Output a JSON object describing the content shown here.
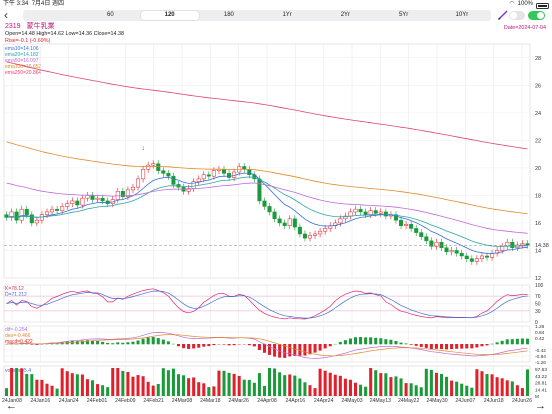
{
  "status": {
    "time": "下午 3:34",
    "date": "7月4日 週四",
    "battery": "100%"
  },
  "tabs": [
    "",
    "60",
    "120",
    "180",
    "1Yr",
    "2Yr",
    "5Yr",
    "10Yr"
  ],
  "active_tab": 2,
  "stock": {
    "code": "2319",
    "name": "蒙牛乳業",
    "ohlc": "Open=14.48  High=14.62  Low=14.36  Close=14.38",
    "rise": "Rise=-0.1  (-0.69%)",
    "date": "Date=2024-07-04"
  },
  "ma_legend": [
    {
      "label": "ema10=14.106",
      "color": "#3b6fd8"
    },
    {
      "label": "ema20=14.182",
      "color": "#2aa5a5"
    },
    {
      "label": "ema50=16.097",
      "color": "#c06ad8"
    },
    {
      "label": "ema100=16.652",
      "color": "#e08a2a"
    },
    {
      "label": "ema250=20.864",
      "color": "#e0456e"
    }
  ],
  "kd_legend": [
    {
      "label": "K=78.12",
      "color": "#e02a6a"
    },
    {
      "label": "D=71.212",
      "color": "#3b6fd8"
    }
  ],
  "macd_legend": [
    {
      "label": "dif=-0.254",
      "color": "#c06ad8"
    },
    {
      "label": "dea=-0.466",
      "color": "#e08a2a"
    },
    {
      "label": "macd=0.422",
      "color": "#e0202a"
    }
  ],
  "vol_legend": [
    {
      "label": "volume=5.4",
      "color": "#3b6fd8"
    }
  ],
  "price_ticks": [
    "28",
    "26",
    "24",
    "22",
    "20",
    "18",
    "16",
    "14",
    "12"
  ],
  "last_price": "14.38",
  "kd_ticks": [
    "100",
    "70",
    "50",
    "30",
    "0"
  ],
  "macd_ticks": [
    "1.26",
    "0.84",
    "0.42",
    "-0.42",
    "-0.84",
    "-1.26"
  ],
  "vol_ticks": [
    "57.63",
    "43.22",
    "28.81",
    "14.41",
    "M"
  ],
  "x_labels": [
    "24Jan08",
    "24Jan16",
    "24Jan24",
    "24Feb01",
    "24Feb09",
    "24Feb21",
    "24Mar08",
    "24Mar18",
    "24Mar26",
    "24Apr08",
    "24Apr16",
    "24Apr24",
    "24May03",
    "24May13",
    "24May22",
    "24May30",
    "24Jun07",
    "24Jun18",
    "24Jun26"
  ],
  "chart_data": {
    "type": "candlestick",
    "ylim": [
      12,
      29
    ],
    "closes": [
      16.4,
      16.8,
      16.2,
      17.0,
      16.6,
      16.0,
      16.2,
      16.6,
      16.8,
      17.0,
      16.9,
      17.2,
      17.4,
      17.6,
      17.3,
      17.8,
      18.0,
      17.7,
      17.8,
      17.6,
      17.4,
      17.7,
      18.3,
      17.9,
      18.4,
      18.6,
      19.2,
      19.9,
      20.2,
      20.3,
      19.8,
      19.6,
      19.4,
      18.8,
      18.6,
      18.3,
      18.5,
      19.0,
      19.2,
      19.5,
      19.4,
      19.8,
      19.9,
      19.6,
      19.3,
      19.7,
      20.1,
      19.9,
      19.5,
      19.2,
      17.6,
      17.2,
      16.8,
      16.3,
      16.0,
      15.8,
      16.3,
      15.7,
      15.2,
      14.9,
      15.1,
      15.2,
      15.4,
      15.6,
      15.8,
      16.0,
      16.3,
      16.5,
      16.8,
      17.0,
      16.8,
      16.6,
      16.9,
      16.7,
      16.8,
      16.5,
      16.6,
      16.2,
      15.8,
      15.9,
      15.6,
      15.3,
      15.0,
      14.7,
      14.3,
      14.6,
      14.2,
      13.9,
      14.0,
      13.8,
      13.6,
      13.4,
      13.2,
      13.4,
      13.6,
      13.5,
      13.8,
      14.0,
      14.3,
      14.6,
      14.2,
      14.4,
      14.5,
      14.38
    ]
  }
}
